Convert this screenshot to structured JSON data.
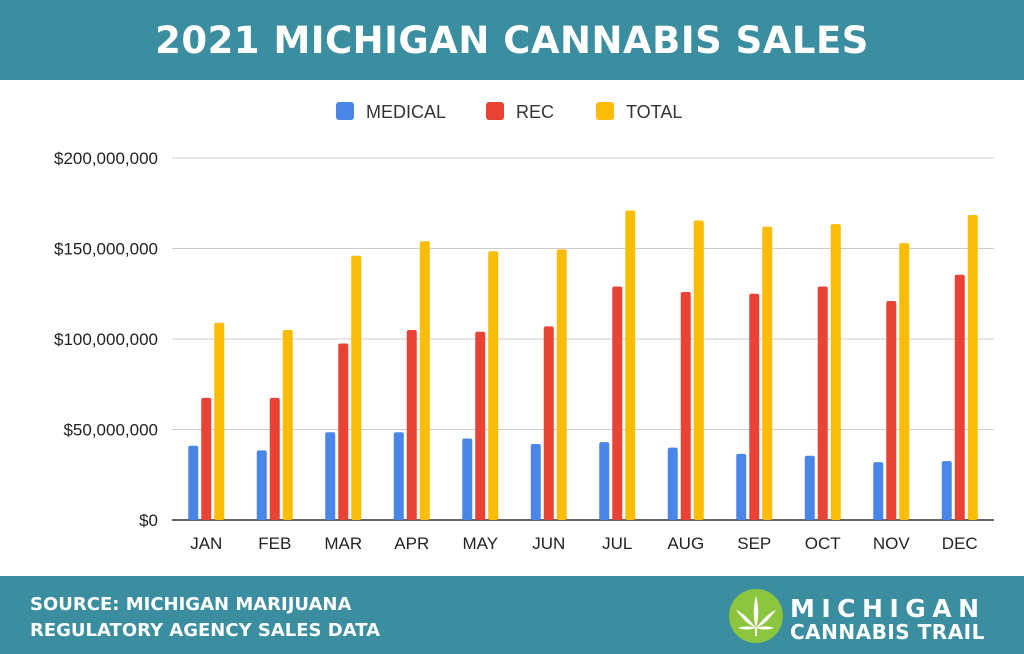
{
  "header": {
    "title": "2021 MICHIGAN CANNABIS SALES"
  },
  "footer": {
    "source_line1": "SOURCE: MICHIGAN MARIJUANA",
    "source_line2": "REGULATORY AGENCY SALES DATA",
    "brand_line1": "MICHIGAN",
    "brand_line2": "CANNABIS TRAIL"
  },
  "colors": {
    "band": "#3a8ea0",
    "medical": "#4a86e8",
    "rec": "#e84335",
    "total": "#fbbc05",
    "logo": "#8cc63f"
  },
  "chart_data": {
    "type": "bar",
    "title": "2021 MICHIGAN CANNABIS SALES",
    "xlabel": "",
    "ylabel": "",
    "categories": [
      "JAN",
      "FEB",
      "MAR",
      "APR",
      "MAY",
      "JUN",
      "JUL",
      "AUG",
      "SEP",
      "OCT",
      "NOV",
      "DEC"
    ],
    "series": [
      {
        "name": "MEDICAL",
        "color": "#4a86e8",
        "values": [
          41000000,
          38500000,
          48500000,
          48500000,
          45000000,
          42000000,
          43000000,
          40000000,
          36500000,
          35500000,
          32000000,
          32500000
        ]
      },
      {
        "name": "REC",
        "color": "#e84335",
        "values": [
          67500000,
          67500000,
          97500000,
          105000000,
          104000000,
          107000000,
          129000000,
          126000000,
          125000000,
          129000000,
          121000000,
          135500000
        ]
      },
      {
        "name": "TOTAL",
        "color": "#fbbc05",
        "values": [
          109000000,
          105000000,
          146000000,
          154000000,
          148500000,
          149500000,
          171000000,
          165500000,
          162000000,
          163500000,
          153000000,
          168500000
        ]
      }
    ],
    "ylim": [
      0,
      200000000
    ],
    "yticks": [
      0,
      50000000,
      100000000,
      150000000,
      200000000
    ],
    "ytick_labels": [
      "$0",
      "$50,000,000",
      "$100,000,000",
      "$150,000,000",
      "$200,000,000"
    ],
    "legend": [
      "MEDICAL",
      "REC",
      "TOTAL"
    ],
    "legend_position": "top-center",
    "grid": true
  }
}
